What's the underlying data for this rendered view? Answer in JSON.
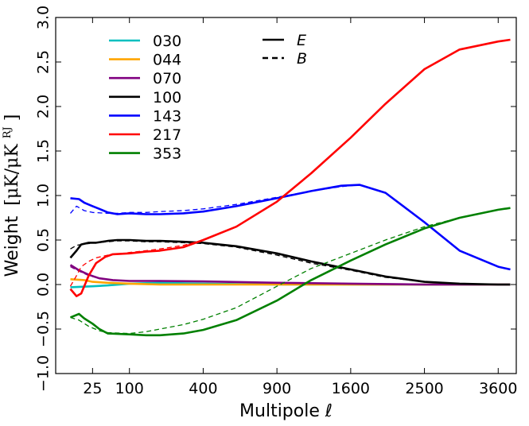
{
  "chart_data": {
    "type": "line",
    "title": "",
    "xlabel": "Multipole ℓ",
    "ylabel_main": "Weight",
    "ylabel_units": "[μK/μK",
    "ylabel_units_sup": "RJ",
    "ylabel_units_close": "]",
    "x_scale": "sqrt",
    "xlim": [
      0,
      3900
    ],
    "ylim": [
      -1.0,
      3.0
    ],
    "x_ticks": [
      {
        "value": 25,
        "label": "25"
      },
      {
        "value": 100,
        "label": "100"
      },
      {
        "value": 400,
        "label": "400"
      },
      {
        "value": 900,
        "label": "900"
      },
      {
        "value": 1600,
        "label": "1600"
      },
      {
        "value": 2500,
        "label": "2500"
      },
      {
        "value": 3600,
        "label": "3600"
      }
    ],
    "y_ticks": [
      {
        "value": -1.0,
        "label": "−1.0"
      },
      {
        "value": -0.5,
        "label": "−0.5"
      },
      {
        "value": 0.0,
        "label": "0.0"
      },
      {
        "value": 0.5,
        "label": "0.5"
      },
      {
        "value": 1.0,
        "label": "1.0"
      },
      {
        "value": 1.5,
        "label": "1.5"
      },
      {
        "value": 2.0,
        "label": "2.0"
      },
      {
        "value": 2.5,
        "label": "2.5"
      },
      {
        "value": 3.0,
        "label": "3.0"
      }
    ],
    "x_zero_tick_label": "",
    "grid": false,
    "legend_position": "top-left",
    "style_legend_position": "top-center",
    "style_legend": [
      {
        "label": "E",
        "dash": "solid"
      },
      {
        "label": "B",
        "dash": "dashed"
      }
    ],
    "series": [
      {
        "name": "030",
        "color": "#00bfbf",
        "E": [
          [
            4,
            -0.03
          ],
          [
            25,
            -0.02
          ],
          [
            50,
            -0.01
          ],
          [
            100,
            0.01
          ],
          [
            200,
            0.02
          ],
          [
            400,
            0.01
          ],
          [
            900,
            0.0
          ],
          [
            1600,
            0.0
          ],
          [
            2500,
            0.0
          ],
          [
            3800,
            0.0
          ]
        ],
        "B": [
          [
            4,
            -0.03
          ],
          [
            25,
            -0.02
          ],
          [
            50,
            -0.01
          ],
          [
            100,
            0.01
          ],
          [
            200,
            0.02
          ],
          [
            400,
            0.01
          ],
          [
            900,
            0.0
          ],
          [
            1600,
            0.0
          ],
          [
            2500,
            0.0
          ],
          [
            3800,
            0.0
          ]
        ]
      },
      {
        "name": "044",
        "color": "#ffa500",
        "E": [
          [
            4,
            0.06
          ],
          [
            15,
            0.05
          ],
          [
            25,
            0.03
          ],
          [
            50,
            0.02
          ],
          [
            100,
            0.01
          ],
          [
            200,
            0.0
          ],
          [
            400,
            0.0
          ],
          [
            900,
            0.0
          ],
          [
            1600,
            0.0
          ],
          [
            3800,
            0.0
          ]
        ],
        "B": [
          [
            4,
            0.06
          ],
          [
            15,
            0.05
          ],
          [
            25,
            0.03
          ],
          [
            50,
            0.02
          ],
          [
            100,
            0.01
          ],
          [
            200,
            0.0
          ],
          [
            400,
            0.0
          ],
          [
            900,
            0.0
          ],
          [
            1600,
            0.0
          ],
          [
            3800,
            0.0
          ]
        ]
      },
      {
        "name": "070",
        "color": "#800080",
        "E": [
          [
            4,
            0.22
          ],
          [
            10,
            0.16
          ],
          [
            20,
            0.11
          ],
          [
            35,
            0.07
          ],
          [
            60,
            0.05
          ],
          [
            100,
            0.04
          ],
          [
            200,
            0.04
          ],
          [
            400,
            0.035
          ],
          [
            900,
            0.02
          ],
          [
            1600,
            0.01
          ],
          [
            2500,
            0.0
          ],
          [
            3800,
            0.0
          ]
        ],
        "B": [
          [
            4,
            0.2
          ],
          [
            10,
            0.15
          ],
          [
            20,
            0.1
          ],
          [
            35,
            0.07
          ],
          [
            60,
            0.05
          ],
          [
            100,
            0.04
          ],
          [
            200,
            0.04
          ],
          [
            400,
            0.035
          ],
          [
            900,
            0.02
          ],
          [
            1600,
            0.01
          ],
          [
            2500,
            0.0
          ],
          [
            3800,
            0.0
          ]
        ]
      },
      {
        "name": "100",
        "color": "#000000",
        "E": [
          [
            4,
            0.3
          ],
          [
            8,
            0.38
          ],
          [
            12,
            0.45
          ],
          [
            20,
            0.47
          ],
          [
            30,
            0.47
          ],
          [
            50,
            0.49
          ],
          [
            70,
            0.5
          ],
          [
            100,
            0.5
          ],
          [
            150,
            0.49
          ],
          [
            200,
            0.49
          ],
          [
            300,
            0.48
          ],
          [
            400,
            0.47
          ],
          [
            600,
            0.43
          ],
          [
            900,
            0.35
          ],
          [
            1200,
            0.26
          ],
          [
            1600,
            0.17
          ],
          [
            2000,
            0.09
          ],
          [
            2500,
            0.03
          ],
          [
            3000,
            0.01
          ],
          [
            3600,
            0.0
          ],
          [
            3800,
            0.0
          ]
        ],
        "B": [
          [
            4,
            0.4
          ],
          [
            8,
            0.44
          ],
          [
            12,
            0.45
          ],
          [
            20,
            0.46
          ],
          [
            30,
            0.47
          ],
          [
            50,
            0.48
          ],
          [
            70,
            0.49
          ],
          [
            100,
            0.49
          ],
          [
            150,
            0.48
          ],
          [
            200,
            0.48
          ],
          [
            300,
            0.47
          ],
          [
            400,
            0.46
          ],
          [
            600,
            0.42
          ],
          [
            900,
            0.33
          ],
          [
            1200,
            0.24
          ],
          [
            1600,
            0.16
          ],
          [
            2000,
            0.08
          ],
          [
            2500,
            0.03
          ],
          [
            3000,
            0.01
          ],
          [
            3600,
            0.0
          ],
          [
            3800,
            0.0
          ]
        ]
      },
      {
        "name": "143",
        "color": "#0000ff",
        "E": [
          [
            4,
            0.97
          ],
          [
            10,
            0.96
          ],
          [
            15,
            0.92
          ],
          [
            25,
            0.88
          ],
          [
            35,
            0.85
          ],
          [
            50,
            0.81
          ],
          [
            70,
            0.79
          ],
          [
            100,
            0.8
          ],
          [
            150,
            0.79
          ],
          [
            200,
            0.79
          ],
          [
            300,
            0.8
          ],
          [
            400,
            0.82
          ],
          [
            600,
            0.88
          ],
          [
            900,
            0.97
          ],
          [
            1200,
            1.05
          ],
          [
            1500,
            1.11
          ],
          [
            1700,
            1.12
          ],
          [
            2000,
            1.03
          ],
          [
            2500,
            0.7
          ],
          [
            3000,
            0.38
          ],
          [
            3600,
            0.2
          ],
          [
            3800,
            0.17
          ]
        ],
        "B": [
          [
            4,
            0.8
          ],
          [
            8,
            0.88
          ],
          [
            15,
            0.83
          ],
          [
            25,
            0.81
          ],
          [
            50,
            0.8
          ],
          [
            70,
            0.8
          ],
          [
            100,
            0.81
          ],
          [
            150,
            0.81
          ],
          [
            200,
            0.82
          ],
          [
            300,
            0.83
          ],
          [
            400,
            0.85
          ],
          [
            600,
            0.9
          ],
          [
            900,
            0.98
          ],
          [
            1200,
            1.05
          ],
          [
            1500,
            1.1
          ],
          [
            1700,
            1.12
          ],
          [
            2000,
            1.03
          ],
          [
            2500,
            0.7
          ],
          [
            3000,
            0.38
          ],
          [
            3600,
            0.2
          ],
          [
            3800,
            0.17
          ]
        ]
      },
      {
        "name": "217",
        "color": "#ff0000",
        "E": [
          [
            4,
            -0.05
          ],
          [
            8,
            -0.13
          ],
          [
            12,
            -0.1
          ],
          [
            20,
            0.1
          ],
          [
            30,
            0.24
          ],
          [
            45,
            0.31
          ],
          [
            60,
            0.34
          ],
          [
            100,
            0.35
          ],
          [
            150,
            0.37
          ],
          [
            200,
            0.38
          ],
          [
            300,
            0.42
          ],
          [
            400,
            0.5
          ],
          [
            600,
            0.65
          ],
          [
            900,
            0.93
          ],
          [
            1200,
            1.25
          ],
          [
            1600,
            1.65
          ],
          [
            2000,
            2.03
          ],
          [
            2500,
            2.42
          ],
          [
            3000,
            2.64
          ],
          [
            3600,
            2.73
          ],
          [
            3800,
            2.75
          ]
        ],
        "B": [
          [
            4,
            -0.02
          ],
          [
            8,
            0.1
          ],
          [
            12,
            0.2
          ],
          [
            20,
            0.26
          ],
          [
            30,
            0.3
          ],
          [
            50,
            0.33
          ],
          [
            100,
            0.36
          ],
          [
            150,
            0.38
          ],
          [
            200,
            0.4
          ],
          [
            300,
            0.44
          ],
          [
            400,
            0.5
          ],
          [
            600,
            0.65
          ],
          [
            900,
            0.93
          ],
          [
            1200,
            1.25
          ],
          [
            1600,
            1.65
          ],
          [
            2000,
            2.03
          ],
          [
            2500,
            2.42
          ],
          [
            3000,
            2.64
          ],
          [
            3600,
            2.73
          ],
          [
            3800,
            2.75
          ]
        ]
      },
      {
        "name": "353",
        "color": "#008000",
        "E": [
          [
            4,
            -0.37
          ],
          [
            10,
            -0.33
          ],
          [
            15,
            -0.38
          ],
          [
            25,
            -0.44
          ],
          [
            35,
            -0.5
          ],
          [
            50,
            -0.55
          ],
          [
            100,
            -0.56
          ],
          [
            150,
            -0.57
          ],
          [
            200,
            -0.57
          ],
          [
            300,
            -0.55
          ],
          [
            400,
            -0.51
          ],
          [
            600,
            -0.4
          ],
          [
            900,
            -0.18
          ],
          [
            1200,
            0.05
          ],
          [
            1600,
            0.27
          ],
          [
            2000,
            0.45
          ],
          [
            2500,
            0.63
          ],
          [
            3000,
            0.75
          ],
          [
            3600,
            0.84
          ],
          [
            3800,
            0.86
          ]
        ],
        "B": [
          [
            4,
            -0.37
          ],
          [
            10,
            -0.4
          ],
          [
            20,
            -0.47
          ],
          [
            35,
            -0.52
          ],
          [
            50,
            -0.54
          ],
          [
            100,
            -0.55
          ],
          [
            150,
            -0.53
          ],
          [
            200,
            -0.5
          ],
          [
            300,
            -0.45
          ],
          [
            400,
            -0.39
          ],
          [
            600,
            -0.26
          ],
          [
            900,
            -0.02
          ],
          [
            1200,
            0.18
          ],
          [
            1600,
            0.35
          ],
          [
            2000,
            0.5
          ],
          [
            2500,
            0.65
          ],
          [
            3000,
            0.75
          ],
          [
            3600,
            0.84
          ],
          [
            3800,
            0.86
          ]
        ]
      }
    ]
  }
}
